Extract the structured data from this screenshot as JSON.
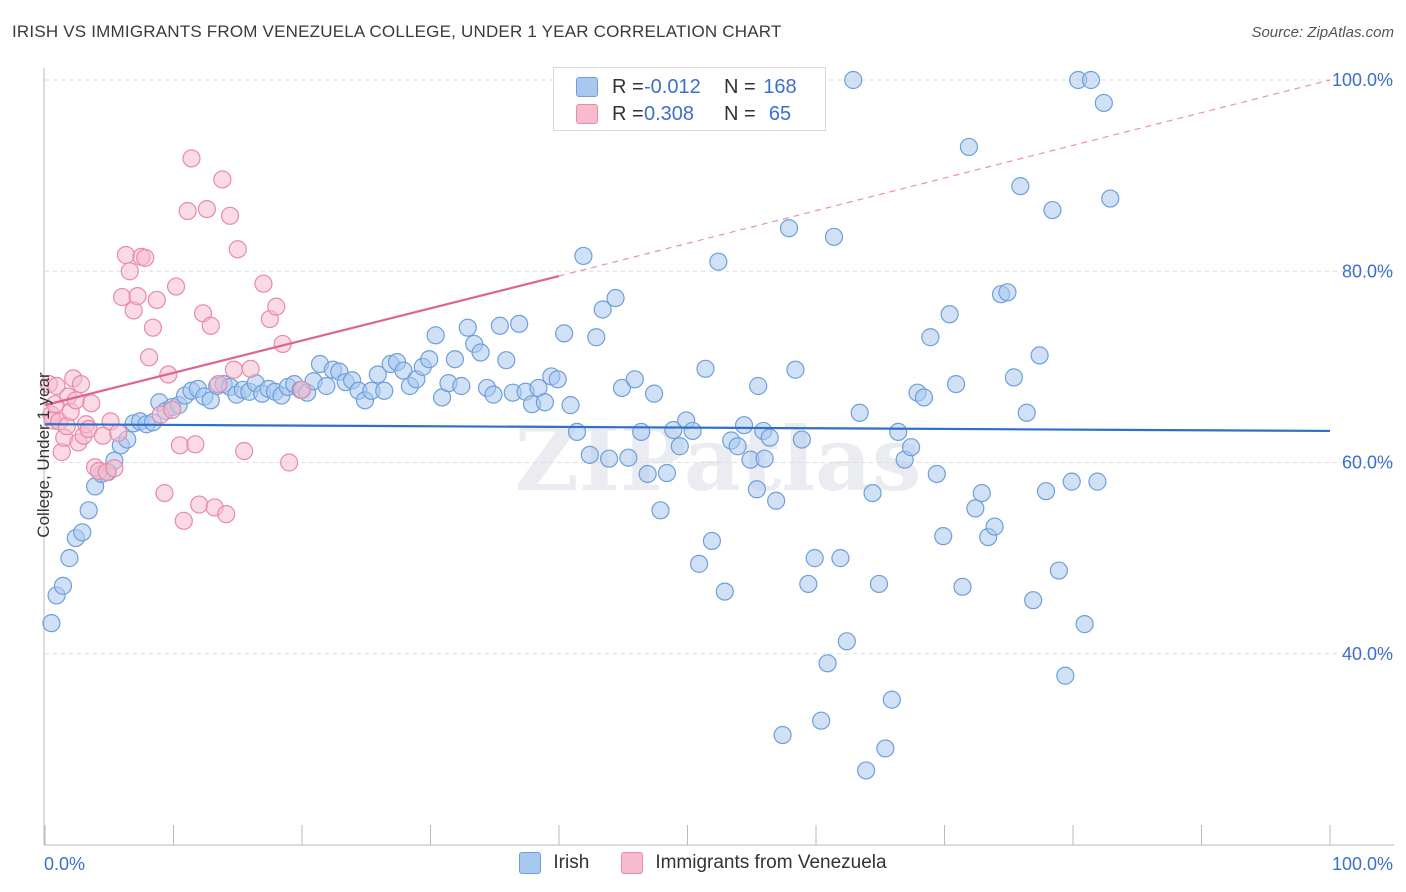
{
  "header": {
    "title": "IRISH VS IMMIGRANTS FROM VENEZUELA COLLEGE, UNDER 1 YEAR CORRELATION CHART",
    "source": "Source: ZipAtlas.com"
  },
  "watermark": "ZIPatlas",
  "legend_top": [
    {
      "r_label": "R =",
      "r_value": "-0.012",
      "n_label": "N =",
      "n_value": "168"
    },
    {
      "r_label": "R =",
      "r_value": "0.308",
      "n_label": "N =",
      "n_value": "65"
    }
  ],
  "colors": {
    "irish_fill": "#a9c8ef",
    "irish_stroke": "#6e9fdc",
    "irish_line": "#2f6fc8",
    "venezuela_fill": "#f6bccd",
    "venezuela_stroke": "#e98aa8",
    "venezuela_line": "#e0628e",
    "tick_label": "#3b6fcf",
    "grid": "#dedede"
  },
  "chart_data": {
    "type": "scatter",
    "ylabel": "College, Under 1 year",
    "xlim": [
      0,
      100
    ],
    "ylim": [
      20,
      100
    ],
    "x_tick_labels": [
      {
        "value": 0,
        "label": "0.0%"
      },
      {
        "value": 100,
        "label": "100.0%"
      }
    ],
    "y_tick_labels": [
      {
        "value": 40,
        "label": "40.0%"
      },
      {
        "value": 60,
        "label": "60.0%"
      },
      {
        "value": 80,
        "label": "80.0%"
      },
      {
        "value": 100,
        "label": "100.0%"
      }
    ],
    "grid": true,
    "legend_position": "bottom",
    "series": [
      {
        "name": "Irish",
        "trend": {
          "x0": 0,
          "y0": 64.0,
          "x1": 100,
          "y1": 63.3
        },
        "points": [
          [
            0.5,
            43.2
          ],
          [
            0.9,
            46.1
          ],
          [
            1.4,
            47.1
          ],
          [
            1.9,
            50.0
          ],
          [
            2.4,
            52.1
          ],
          [
            2.9,
            52.7
          ],
          [
            3.4,
            55.0
          ],
          [
            3.9,
            57.5
          ],
          [
            4.4,
            58.8
          ],
          [
            4.9,
            59.0
          ],
          [
            5.4,
            60.2
          ],
          [
            5.9,
            61.8
          ],
          [
            6.4,
            62.4
          ],
          [
            6.9,
            64.1
          ],
          [
            7.4,
            64.3
          ],
          [
            7.9,
            64.0
          ],
          [
            8.4,
            64.2
          ],
          [
            8.9,
            66.3
          ],
          [
            9.4,
            65.4
          ],
          [
            9.9,
            65.8
          ],
          [
            10.4,
            66.0
          ],
          [
            10.9,
            67.0
          ],
          [
            11.4,
            67.5
          ],
          [
            11.9,
            67.7
          ],
          [
            12.4,
            66.9
          ],
          [
            12.9,
            66.5
          ],
          [
            13.4,
            68.0
          ],
          [
            13.9,
            68.2
          ],
          [
            14.4,
            67.9
          ],
          [
            14.9,
            67.1
          ],
          [
            15.4,
            67.6
          ],
          [
            15.9,
            67.4
          ],
          [
            16.4,
            68.3
          ],
          [
            16.9,
            67.2
          ],
          [
            17.4,
            67.7
          ],
          [
            17.9,
            67.4
          ],
          [
            18.4,
            67.0
          ],
          [
            18.9,
            67.9
          ],
          [
            19.4,
            68.2
          ],
          [
            19.9,
            67.6
          ],
          [
            20.4,
            67.3
          ],
          [
            20.9,
            68.5
          ],
          [
            21.4,
            70.3
          ],
          [
            21.9,
            68.0
          ],
          [
            22.4,
            69.7
          ],
          [
            22.9,
            69.5
          ],
          [
            23.4,
            68.4
          ],
          [
            23.9,
            68.6
          ],
          [
            24.4,
            67.5
          ],
          [
            24.9,
            66.5
          ],
          [
            25.4,
            67.5
          ],
          [
            25.9,
            69.2
          ],
          [
            26.4,
            67.5
          ],
          [
            26.9,
            70.3
          ],
          [
            27.4,
            70.5
          ],
          [
            27.9,
            69.6
          ],
          [
            28.4,
            68.0
          ],
          [
            28.9,
            68.7
          ],
          [
            29.4,
            70.0
          ],
          [
            29.9,
            70.8
          ],
          [
            30.4,
            73.3
          ],
          [
            30.9,
            66.8
          ],
          [
            31.4,
            68.3
          ],
          [
            31.9,
            70.8
          ],
          [
            32.4,
            68.0
          ],
          [
            32.9,
            74.1
          ],
          [
            33.4,
            72.4
          ],
          [
            33.9,
            71.5
          ],
          [
            34.4,
            67.8
          ],
          [
            34.9,
            67.1
          ],
          [
            35.4,
            74.3
          ],
          [
            35.9,
            70.7
          ],
          [
            36.4,
            67.3
          ],
          [
            36.9,
            74.5
          ],
          [
            37.4,
            67.4
          ],
          [
            37.9,
            66.1
          ],
          [
            38.4,
            67.8
          ],
          [
            38.9,
            66.3
          ],
          [
            39.4,
            69.0
          ],
          [
            39.9,
            68.7
          ],
          [
            40.4,
            73.5
          ],
          [
            40.9,
            66.0
          ],
          [
            41.4,
            63.2
          ],
          [
            41.9,
            81.6
          ],
          [
            42.4,
            60.8
          ],
          [
            42.9,
            73.1
          ],
          [
            43.4,
            76.0
          ],
          [
            43.9,
            60.4
          ],
          [
            44.4,
            77.2
          ],
          [
            44.9,
            67.8
          ],
          [
            45.4,
            60.5
          ],
          [
            45.9,
            68.7
          ],
          [
            46.4,
            63.2
          ],
          [
            46.9,
            58.8
          ],
          [
            47.4,
            67.2
          ],
          [
            47.9,
            55.0
          ],
          [
            48.4,
            58.9
          ],
          [
            48.9,
            63.4
          ],
          [
            49.4,
            61.7
          ],
          [
            49.9,
            64.4
          ],
          [
            50.4,
            63.3
          ],
          [
            50.9,
            49.4
          ],
          [
            51.4,
            69.8
          ],
          [
            51.9,
            51.8
          ],
          [
            52.4,
            81.0
          ],
          [
            52.9,
            46.5
          ],
          [
            53.4,
            62.3
          ],
          [
            53.9,
            61.7
          ],
          [
            54.4,
            63.9
          ],
          [
            54.9,
            60.3
          ],
          [
            55.4,
            57.2
          ],
          [
            55.9,
            63.3
          ],
          [
            56.4,
            62.6
          ],
          [
            56.9,
            56.0
          ],
          [
            57.4,
            31.5
          ],
          [
            57.9,
            84.5
          ],
          [
            58.4,
            69.7
          ],
          [
            58.9,
            62.4
          ],
          [
            59.4,
            47.3
          ],
          [
            59.9,
            50.0
          ],
          [
            60.4,
            33.0
          ],
          [
            60.9,
            39.0
          ],
          [
            61.4,
            83.6
          ],
          [
            61.9,
            50.0
          ],
          [
            62.4,
            41.3
          ],
          [
            62.9,
            100.0
          ],
          [
            63.4,
            65.2
          ],
          [
            63.9,
            27.8
          ],
          [
            64.4,
            56.8
          ],
          [
            64.9,
            47.3
          ],
          [
            65.4,
            30.1
          ],
          [
            65.9,
            35.2
          ],
          [
            66.4,
            63.2
          ],
          [
            66.9,
            60.3
          ],
          [
            67.4,
            61.6
          ],
          [
            67.9,
            67.3
          ],
          [
            68.4,
            66.8
          ],
          [
            68.9,
            73.1
          ],
          [
            69.4,
            58.8
          ],
          [
            69.9,
            52.3
          ],
          [
            70.4,
            75.5
          ],
          [
            70.9,
            68.2
          ],
          [
            71.4,
            47.0
          ],
          [
            71.9,
            93.0
          ],
          [
            72.4,
            55.2
          ],
          [
            72.9,
            56.8
          ],
          [
            73.4,
            52.2
          ],
          [
            73.9,
            53.3
          ],
          [
            74.4,
            77.6
          ],
          [
            74.9,
            77.8
          ],
          [
            75.4,
            68.9
          ],
          [
            75.9,
            88.9
          ],
          [
            76.4,
            65.2
          ],
          [
            76.9,
            45.6
          ],
          [
            77.4,
            71.2
          ],
          [
            77.9,
            57.0
          ],
          [
            78.4,
            86.4
          ],
          [
            78.9,
            48.7
          ],
          [
            79.4,
            37.7
          ],
          [
            79.9,
            58.0
          ],
          [
            80.4,
            100.0
          ],
          [
            80.9,
            43.1
          ],
          [
            81.4,
            100.0
          ],
          [
            81.9,
            58.0
          ],
          [
            82.4,
            97.6
          ],
          [
            82.9,
            87.6
          ],
          [
            56.0,
            60.4
          ],
          [
            55.5,
            68.0
          ]
        ]
      },
      {
        "name": "Immigrants from Venezuela",
        "trend": {
          "x0": 0,
          "y0": 66.0,
          "x1": 40,
          "y1": 79.5,
          "ext_x1": 100,
          "ext_y1": 100.0
        },
        "points": [
          [
            0.3,
            68.2
          ],
          [
            0.5,
            65.0
          ],
          [
            0.6,
            64.4
          ],
          [
            0.8,
            66.1
          ],
          [
            0.9,
            68.0
          ],
          [
            1.1,
            64.3
          ],
          [
            1.3,
            61.1
          ],
          [
            1.5,
            62.6
          ],
          [
            1.7,
            63.8
          ],
          [
            1.8,
            66.9
          ],
          [
            2.0,
            65.3
          ],
          [
            2.2,
            68.8
          ],
          [
            2.4,
            66.5
          ],
          [
            2.6,
            62.1
          ],
          [
            2.8,
            68.2
          ],
          [
            3.0,
            62.8
          ],
          [
            3.2,
            64.0
          ],
          [
            3.4,
            63.5
          ],
          [
            3.6,
            66.2
          ],
          [
            3.9,
            59.5
          ],
          [
            4.2,
            59.1
          ],
          [
            4.5,
            62.8
          ],
          [
            4.8,
            59.0
          ],
          [
            5.1,
            64.3
          ],
          [
            5.4,
            59.4
          ],
          [
            5.7,
            63.1
          ],
          [
            6.0,
            77.3
          ],
          [
            6.3,
            81.7
          ],
          [
            6.6,
            80.0
          ],
          [
            6.9,
            75.9
          ],
          [
            7.2,
            77.4
          ],
          [
            7.5,
            81.5
          ],
          [
            7.8,
            81.4
          ],
          [
            8.1,
            71.0
          ],
          [
            8.4,
            74.1
          ],
          [
            8.7,
            77.0
          ],
          [
            9.0,
            65.0
          ],
          [
            9.3,
            56.8
          ],
          [
            9.6,
            69.2
          ],
          [
            9.9,
            65.5
          ],
          [
            10.2,
            78.4
          ],
          [
            10.5,
            61.8
          ],
          [
            10.8,
            53.9
          ],
          [
            11.1,
            86.3
          ],
          [
            11.4,
            91.8
          ],
          [
            11.7,
            61.9
          ],
          [
            12.0,
            55.6
          ],
          [
            12.3,
            75.6
          ],
          [
            12.6,
            86.5
          ],
          [
            12.9,
            74.3
          ],
          [
            13.2,
            55.3
          ],
          [
            13.5,
            68.2
          ],
          [
            13.8,
            89.6
          ],
          [
            14.1,
            54.6
          ],
          [
            14.4,
            85.8
          ],
          [
            14.7,
            69.7
          ],
          [
            15.0,
            82.3
          ],
          [
            15.5,
            61.2
          ],
          [
            16.0,
            69.8
          ],
          [
            17.0,
            78.7
          ],
          [
            17.5,
            75.0
          ],
          [
            18.0,
            76.3
          ],
          [
            18.5,
            72.4
          ],
          [
            19.0,
            60.0
          ],
          [
            20.0,
            67.6
          ]
        ]
      }
    ]
  }
}
